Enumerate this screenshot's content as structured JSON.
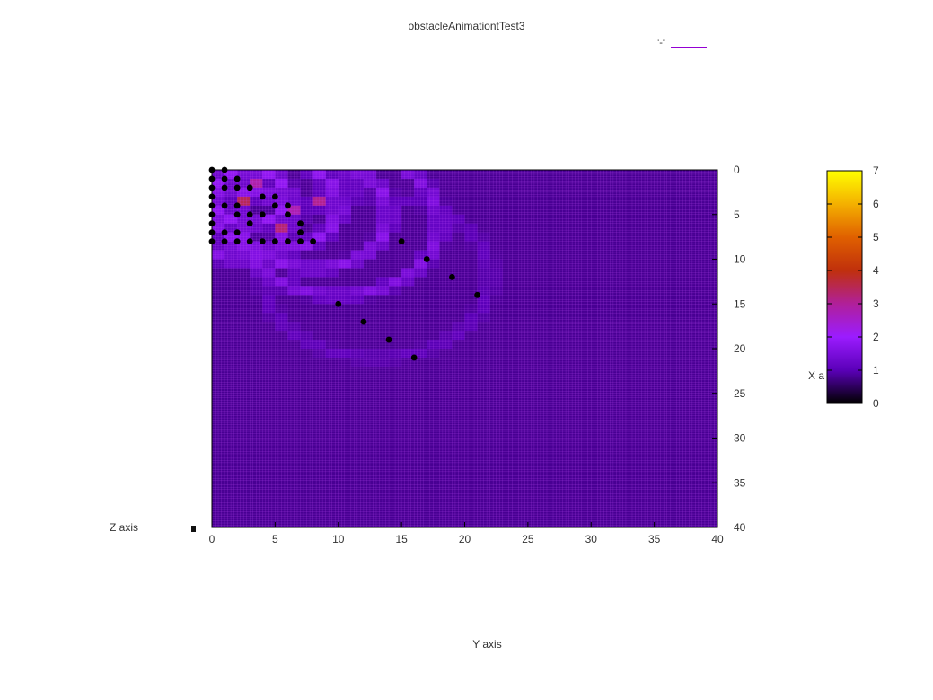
{
  "chart_data": {
    "type": "heatmap",
    "title": "obstacleAnimationtTest3",
    "legend": {
      "entries": [
        {
          "label": "'-'",
          "color": "#9400d3"
        }
      ]
    },
    "xlabel": "X a",
    "ylabel": "Y axis",
    "zlabel": "Z axis",
    "x_axis": {
      "label": "Y axis",
      "range": [
        0,
        40
      ],
      "ticks": [
        0,
        5,
        10,
        15,
        20,
        25,
        30,
        35,
        40
      ]
    },
    "y_axis": {
      "label": "",
      "range": [
        0,
        40
      ],
      "inverted": true,
      "position": "right",
      "ticks": [
        0,
        5,
        10,
        15,
        20,
        25,
        30,
        35,
        40
      ]
    },
    "colorbar": {
      "range": [
        0,
        7
      ],
      "ticks": [
        0,
        1,
        2,
        3,
        4,
        5,
        6,
        7
      ],
      "palette": [
        "#000000",
        "#5a00b8",
        "#9b1cff",
        "#b0209a",
        "#c0300c",
        "#e06000",
        "#f4b000",
        "#ffff00"
      ]
    },
    "grid": true,
    "background_value": 0.8,
    "rings": [
      {
        "cx": 3,
        "cy": 3,
        "r": 3,
        "value": 1.9
      },
      {
        "cx": 5,
        "cy": 4,
        "r": 5,
        "value": 1.8
      },
      {
        "cx": 8,
        "cy": 5,
        "r": 6,
        "value": 1.7
      },
      {
        "cx": 10,
        "cy": 6,
        "r": 8,
        "value": 1.6
      },
      {
        "cx": 2,
        "cy": 6,
        "r": 4,
        "value": 1.8
      },
      {
        "cx": 4,
        "cy": 2,
        "r": 7,
        "value": 1.4
      },
      {
        "cx": 13,
        "cy": 12,
        "r": 9,
        "value": 1.05
      }
    ],
    "hotspots": [
      {
        "x": 2,
        "y": 3,
        "value": 3.5
      },
      {
        "x": 5,
        "y": 6,
        "value": 3.3
      },
      {
        "x": 8,
        "y": 3,
        "value": 3.1
      },
      {
        "x": 3,
        "y": 1,
        "value": 2.9
      },
      {
        "x": 6,
        "y": 4,
        "value": 2.8
      }
    ],
    "points": [
      {
        "x": 0,
        "y": 0
      },
      {
        "x": 1,
        "y": 0
      },
      {
        "x": 0,
        "y": 1
      },
      {
        "x": 1,
        "y": 1
      },
      {
        "x": 2,
        "y": 1
      },
      {
        "x": 0,
        "y": 2
      },
      {
        "x": 1,
        "y": 2
      },
      {
        "x": 2,
        "y": 2
      },
      {
        "x": 3,
        "y": 2
      },
      {
        "x": 0,
        "y": 3
      },
      {
        "x": 4,
        "y": 3
      },
      {
        "x": 5,
        "y": 3
      },
      {
        "x": 0,
        "y": 4
      },
      {
        "x": 1,
        "y": 4
      },
      {
        "x": 2,
        "y": 4
      },
      {
        "x": 5,
        "y": 4
      },
      {
        "x": 6,
        "y": 4
      },
      {
        "x": 0,
        "y": 5
      },
      {
        "x": 2,
        "y": 5
      },
      {
        "x": 3,
        "y": 5
      },
      {
        "x": 4,
        "y": 5
      },
      {
        "x": 6,
        "y": 5
      },
      {
        "x": 0,
        "y": 6
      },
      {
        "x": 3,
        "y": 6
      },
      {
        "x": 7,
        "y": 6
      },
      {
        "x": 0,
        "y": 7
      },
      {
        "x": 1,
        "y": 7
      },
      {
        "x": 2,
        "y": 7
      },
      {
        "x": 7,
        "y": 7
      },
      {
        "x": 0,
        "y": 8
      },
      {
        "x": 1,
        "y": 8
      },
      {
        "x": 2,
        "y": 8
      },
      {
        "x": 3,
        "y": 8
      },
      {
        "x": 4,
        "y": 8
      },
      {
        "x": 5,
        "y": 8
      },
      {
        "x": 6,
        "y": 8
      },
      {
        "x": 7,
        "y": 8
      },
      {
        "x": 8,
        "y": 8
      },
      {
        "x": 15,
        "y": 8
      },
      {
        "x": 17,
        "y": 10
      },
      {
        "x": 19,
        "y": 12
      },
      {
        "x": 21,
        "y": 14
      },
      {
        "x": 10,
        "y": 15
      },
      {
        "x": 12,
        "y": 17
      },
      {
        "x": 14,
        "y": 19
      },
      {
        "x": 16,
        "y": 21
      }
    ]
  }
}
